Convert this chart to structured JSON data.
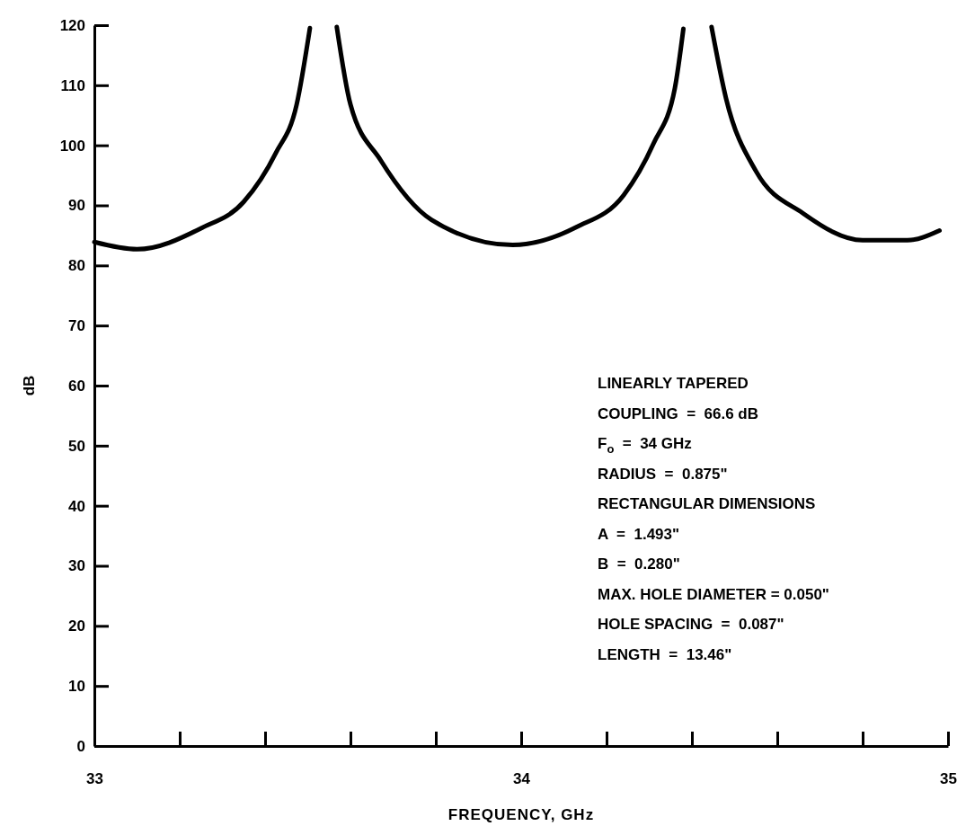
{
  "chart_data": {
    "type": "line",
    "xlabel": "FREQUENCY, GHz",
    "ylabel": "dB",
    "xlim": [
      33,
      35
    ],
    "ylim": [
      0,
      120
    ],
    "xticks": [
      33,
      {
        "value": 33.2,
        "label": null
      },
      {
        "value": 33.4,
        "label": null
      },
      {
        "value": 33.6,
        "label": null
      },
      {
        "value": 33.8,
        "label": null
      },
      34,
      {
        "value": 34.2,
        "label": null
      },
      {
        "value": 34.4,
        "label": null
      },
      {
        "value": 34.6,
        "label": null
      },
      {
        "value": 34.8,
        "label": null
      },
      35
    ],
    "yticks": [
      0,
      10,
      20,
      30,
      40,
      50,
      60,
      70,
      80,
      90,
      100,
      110,
      120
    ],
    "grid": false,
    "marker": "none",
    "line_style": "solid",
    "series": [
      {
        "color": "#000000",
        "x": [
          33,
          33.1,
          33.25,
          33.35,
          33.425,
          33.474,
          33.505,
          33.53,
          33.568,
          33.6,
          33.67,
          33.79,
          33.98,
          34.13,
          34.24,
          34.31,
          34.36,
          34.38,
          34.41,
          34.446,
          34.48,
          34.55,
          34.66,
          34.8,
          34.905,
          34.98
        ],
        "values": [
          83.9,
          82.7,
          86.2,
          90.6,
          98.7,
          106.8,
          119.5,
          null,
          119.7,
          106.8,
          97.6,
          87.6,
          83.4,
          86.4,
          91.7,
          100.3,
          109.5,
          119.4,
          null,
          119.7,
          107.8,
          95.7,
          88.7,
          84.2,
          84.2,
          85.8
        ]
      }
    ],
    "annotations": [
      "LINEARLY TAPERED",
      "COUPLING  =  66.6 dB",
      "F$_{o}$  =  34 GHz",
      "RADIUS  =  0.875\"",
      "RECTANGULAR DIMENSIONS",
      "A  =  1.493\"",
      "B  =  0.280\"",
      "MAX. HOLE DIAMETER = 0.050\"",
      "HOLE SPACING  =  0.087\"",
      "LENGTH  =  13.46\""
    ]
  }
}
